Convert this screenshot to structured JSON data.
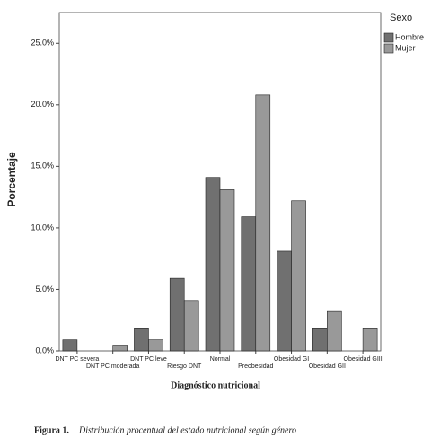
{
  "chart_data": {
    "type": "bar",
    "categories": [
      "DNT PC severa",
      "DNT PC moderada",
      "DNT PC leve",
      "Riesgo DNT",
      "Normal",
      "Preobesidad",
      "Obesidad GI",
      "Obesidad GII",
      "Obesidad GIII"
    ],
    "series": [
      {
        "name": "Hombre",
        "color": "#707070",
        "values": [
          0.9,
          0,
          1.8,
          5.9,
          14.1,
          10.9,
          8.1,
          1.8,
          0
        ]
      },
      {
        "name": "Mujer",
        "color": "#999999",
        "values": [
          0,
          0.4,
          0.9,
          4.1,
          13.1,
          20.8,
          12.2,
          3.2,
          1.8
        ]
      }
    ],
    "ylim": [
      0,
      27.5
    ],
    "yticks": [
      {
        "value": 0,
        "label": "0.0%"
      },
      {
        "value": 5,
        "label": "5.0%"
      },
      {
        "value": 10,
        "label": "10.0%"
      },
      {
        "value": 15,
        "label": "15.0%"
      },
      {
        "value": 20,
        "label": "20.0%"
      },
      {
        "value": 25,
        "label": "25.0%"
      }
    ],
    "ylabel": "Porcentaje",
    "xlabel": "Diagnóstico nutricional",
    "legend_title": "Sexo",
    "legend_position": "upper right outside",
    "caption_label": "Figura 1.",
    "caption": "Distribución procentual del estado nutricional según género"
  }
}
